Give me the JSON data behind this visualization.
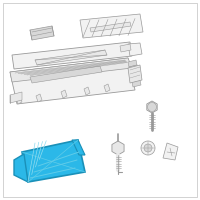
{
  "bg_color": "#ffffff",
  "border_color": "#c0c0c0",
  "highlight_color": "#2bb8e8",
  "highlight_edge": "#1a90b8",
  "highlight_inner": "#60cce8",
  "part_line_color": "#999999",
  "part_fill_light": "#f2f2f2",
  "part_fill_mid": "#e8e8e8",
  "part_fill_dark": "#d8d8d8"
}
